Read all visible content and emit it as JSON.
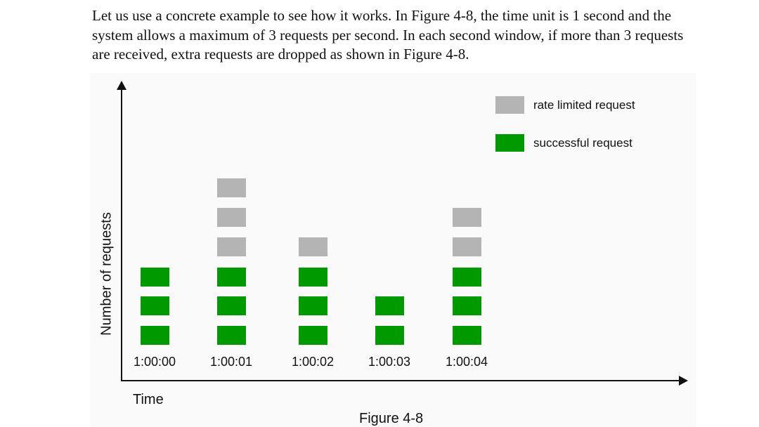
{
  "paragraph": "Let us use a concrete example to see how it works. In Figure 4-8, the time unit is 1 second and the system allows a maximum of 3 requests per second. In each second window, if more than 3 requests are received, extra requests are dropped as shown in Figure 4-8.",
  "chart_data": {
    "type": "bar",
    "title": "Figure 4-8",
    "xlabel": "Time",
    "ylabel": "Number of requests",
    "categories": [
      "1:00:00",
      "1:00:01",
      "1:00:02",
      "1:00:03",
      "1:00:04"
    ],
    "series": [
      {
        "name": "successful request",
        "values": [
          3,
          3,
          3,
          2,
          3
        ],
        "color": "#009a00"
      },
      {
        "name": "rate limited request",
        "values": [
          0,
          3,
          1,
          0,
          2
        ],
        "color": "#b4b4b4"
      }
    ],
    "legend_position": "top-right",
    "stacked": true
  }
}
